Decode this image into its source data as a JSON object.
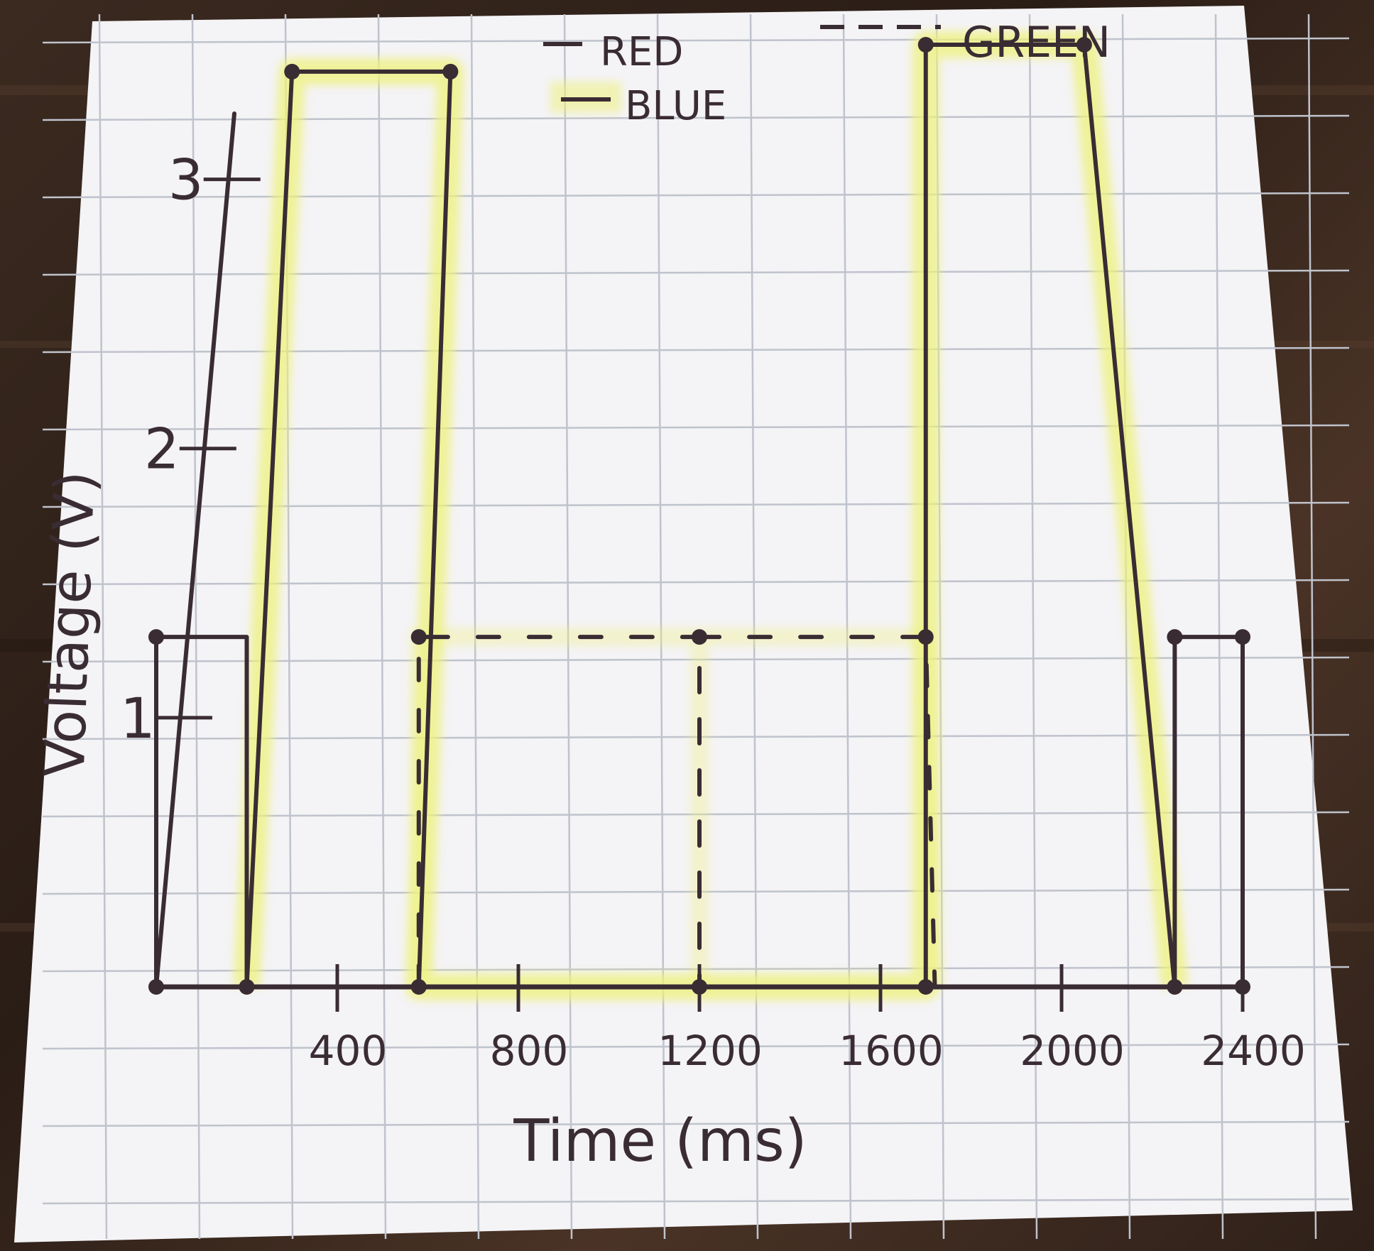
{
  "colors": {
    "ink": "#3a2c33",
    "paper": "#f4f3f6",
    "grid": "#bfc3cc",
    "highlight": "#eef27a",
    "wood": "#3b2a20"
  },
  "chart_data": {
    "type": "line",
    "title": "",
    "xlabel": "Time (ms)",
    "ylabel": "Voltage (V)",
    "xlim": [
      0,
      2400
    ],
    "ylim": [
      0,
      3.5
    ],
    "x_ticks": [
      400,
      800,
      1200,
      1600,
      2000,
      2400
    ],
    "x_tick_labels": [
      "400",
      "800",
      "1200",
      "1600",
      "2000",
      "2400"
    ],
    "y_ticks": [
      1,
      2,
      3
    ],
    "y_tick_labels": [
      "1",
      "2",
      "3"
    ],
    "grid": true,
    "legend": [
      {
        "name": "RED",
        "style": "solid"
      },
      {
        "name": "BLUE",
        "style": "solid-highlighted"
      },
      {
        "name": "GREEN",
        "style": "dashed"
      }
    ],
    "series": [
      {
        "name": "RED",
        "style": "solid",
        "points": [
          [
            0,
            0
          ],
          [
            0,
            1.3
          ],
          [
            200,
            1.3
          ],
          [
            200,
            0
          ],
          [
            2250,
            0
          ],
          [
            2250,
            1.3
          ],
          [
            2400,
            1.3
          ],
          [
            2400,
            0
          ]
        ]
      },
      {
        "name": "BLUE",
        "style": "solid-highlighted",
        "points": [
          [
            200,
            0
          ],
          [
            300,
            3.4
          ],
          [
            650,
            3.4
          ],
          [
            580,
            0
          ],
          [
            1700,
            0
          ],
          [
            1700,
            3.5
          ],
          [
            2050,
            3.5
          ],
          [
            2250,
            0
          ]
        ]
      },
      {
        "name": "GREEN",
        "style": "dashed",
        "points": [
          [
            580,
            0
          ],
          [
            580,
            1.3
          ],
          [
            1200,
            1.3
          ],
          [
            1200,
            0
          ],
          [
            1200,
            1.3
          ],
          [
            1700,
            1.3
          ],
          [
            1720,
            0
          ]
        ]
      }
    ],
    "markers": [
      [
        0,
        0
      ],
      [
        0,
        1.3
      ],
      [
        200,
        0
      ],
      [
        300,
        3.4
      ],
      [
        650,
        3.4
      ],
      [
        580,
        0
      ],
      [
        580,
        1.3
      ],
      [
        1200,
        1.3
      ],
      [
        1200,
        0
      ],
      [
        1700,
        1.3
      ],
      [
        1700,
        0
      ],
      [
        1700,
        3.5
      ],
      [
        2050,
        3.5
      ],
      [
        2250,
        1.3
      ],
      [
        2250,
        0
      ],
      [
        2400,
        1.3
      ],
      [
        2400,
        0
      ]
    ]
  }
}
